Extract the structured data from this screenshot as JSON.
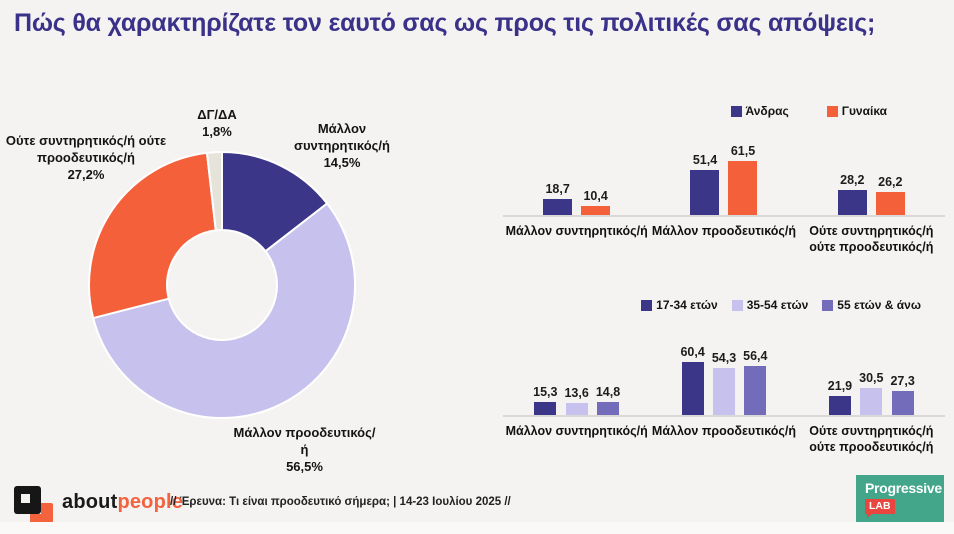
{
  "title": "Πώς θα χαρακτηρίζατε τον εαυτό σας ως προς τις πολιτικές σας απόψεις;",
  "colors": {
    "background": "#f4f3f1",
    "title_indigo": "#3a3189",
    "navy": "#3c3689",
    "lavender": "#c7c2ed",
    "medium_purple": "#736cba",
    "orange": "#f4603a",
    "gray_slice": "#e6e3db",
    "axis_line": "#dad9d7",
    "teal": "#43a68b",
    "red_badge": "#e8463e"
  },
  "chart_data": [
    {
      "id": "self-placement-donut",
      "type": "pie",
      "subtype": "donut",
      "segments": [
        {
          "label": "Μάλλον συντηρητικός/ή",
          "value": 14.5,
          "value_display": "14,5%",
          "color": "#3c3689"
        },
        {
          "label": "Μάλλον προοδευτικός/ή",
          "value": 56.5,
          "value_display": "56,5%",
          "color": "#c7c2ed"
        },
        {
          "label": "Ούτε συντηρητικός/ή ούτε προοδευτικός/ή",
          "value": 27.2,
          "value_display": "27,2%",
          "color": "#f4603a"
        },
        {
          "label": "ΔΓ/ΔΑ",
          "value": 1.8,
          "value_display": "1,8%",
          "color": "#e6e3db"
        }
      ],
      "start_angle_deg": 0,
      "direction": "clockwise"
    },
    {
      "id": "by-gender",
      "type": "bar",
      "categories": [
        "Μάλλον συντηρητικός/ή",
        "Μάλλον προοδευτικός/ή",
        "Ούτε συντηρητικός/ή ούτε προοδευτικός/ή"
      ],
      "series": [
        {
          "name": "Άνδρας",
          "color": "#3c3689",
          "values": [
            18.7,
            51.4,
            28.2
          ],
          "value_displays": [
            "18,7",
            "51,4",
            "28,2"
          ]
        },
        {
          "name": "Γυναίκα",
          "color": "#f4603a",
          "values": [
            10.4,
            61.5,
            26.2
          ],
          "value_displays": [
            "10,4",
            "61,5",
            "26,2"
          ]
        }
      ],
      "ylim": [
        0,
        70
      ],
      "grid": false,
      "legend_position": "top"
    },
    {
      "id": "by-age",
      "type": "bar",
      "categories": [
        "Μάλλον συντηρητικός/ή",
        "Μάλλον προοδευτικός/ή",
        "Ούτε συντηρητικός/ή ούτε προοδευτικός/ή"
      ],
      "series": [
        {
          "name": "17-34 ετών",
          "color": "#3c3689",
          "values": [
            15.3,
            60.4,
            21.9
          ],
          "value_displays": [
            "15,3",
            "60,4",
            "21,9"
          ]
        },
        {
          "name": "35-54 ετών",
          "color": "#c7c2ed",
          "values": [
            13.6,
            54.3,
            30.5
          ],
          "value_displays": [
            "13,6",
            "54,3",
            "30,5"
          ]
        },
        {
          "name": "55 ετών & άνω",
          "color": "#736cba",
          "values": [
            14.8,
            56.4,
            27.3
          ],
          "value_displays": [
            "14,8",
            "56,4",
            "27,3"
          ]
        }
      ],
      "ylim": [
        0,
        70
      ],
      "grid": false,
      "legend_position": "top"
    }
  ],
  "footer": {
    "brand": {
      "part_black": "about",
      "part_orange": "people"
    },
    "survey_note": "// Έρευνα: Τι είναι προοδευτικό σήμερα; | 14-23 Ιουλίου 2025 //",
    "progressive_lab": {
      "line1": "Progressive",
      "line2": "LAB"
    }
  }
}
